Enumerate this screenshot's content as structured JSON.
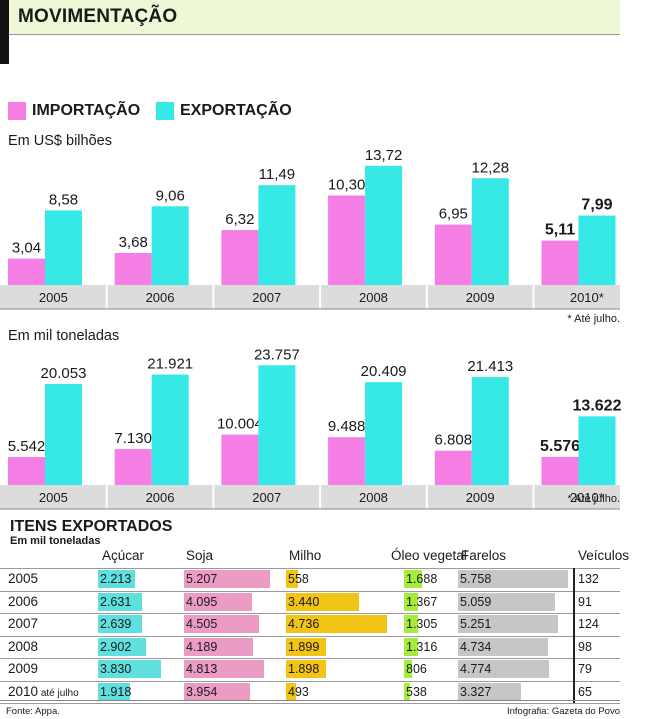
{
  "page_title": "MOVIMENTAÇÃO",
  "legend": {
    "import_label": "IMPORTAÇÃO",
    "export_label": "EXPORTAÇÃO"
  },
  "colors": {
    "import": "#f47ee3",
    "export": "#36e8e6",
    "band": "#dcdcdc",
    "acucar": "#5fe0df",
    "soja": "#eb9bc4",
    "milho": "#f2c416",
    "oleo": "#a6ec3a",
    "farelos": "#c6c6c6"
  },
  "chart_data": [
    {
      "type": "bar",
      "title": "Em US$ bilhões",
      "categories": [
        "2005",
        "2006",
        "2007",
        "2008",
        "2009",
        "2010*"
      ],
      "series": [
        {
          "name": "IMPORTAÇÃO",
          "values": [
            3.04,
            3.68,
            6.32,
            10.3,
            6.95,
            5.11
          ],
          "labels": [
            "3,04",
            "3,68",
            "6,32",
            "10,30",
            "6,95",
            "5,11"
          ]
        },
        {
          "name": "EXPORTAÇÃO",
          "values": [
            8.58,
            9.06,
            11.49,
            13.72,
            12.28,
            7.99
          ],
          "labels": [
            "8,58",
            "9,06",
            "11,49",
            "13,72",
            "12,28",
            "7,99"
          ]
        }
      ],
      "ylim": [
        0,
        14.5
      ],
      "footnote": "* Até julho."
    },
    {
      "type": "bar",
      "title": "Em mil toneladas",
      "categories": [
        "2005",
        "2006",
        "2007",
        "2008",
        "2009",
        "2010*"
      ],
      "series": [
        {
          "name": "IMPORTAÇÃO",
          "values": [
            5542,
            7130,
            10004,
            9488,
            6808,
            5576
          ],
          "labels": [
            "5.542",
            "7.130",
            "10.004",
            "9.488",
            "6.808",
            "5.576"
          ]
        },
        {
          "name": "EXPORTAÇÃO",
          "values": [
            20053,
            21921,
            23757,
            20409,
            21413,
            13622
          ],
          "labels": [
            "20.053",
            "21.921",
            "23.757",
            "20.409",
            "21.413",
            "13.622"
          ]
        }
      ],
      "ylim": [
        0,
        25000
      ],
      "footnote": "* Até julho."
    },
    {
      "type": "table",
      "title": "ITENS EXPORTADOS",
      "subtitle": "Em mil toneladas",
      "columns": [
        "Açúcar",
        "Soja",
        "Milho",
        "Óleo vegetal",
        "Farelos",
        "Veículos"
      ],
      "rows": [
        {
          "year": "2005",
          "year_note": "",
          "values": [
            2213,
            5207,
            558,
            1688,
            5758,
            132
          ],
          "labels": [
            "2.213",
            "5.207",
            "558",
            "1.688",
            "5.758",
            "132"
          ]
        },
        {
          "year": "2006",
          "year_note": "",
          "values": [
            2631,
            4095,
            3440,
            1367,
            5059,
            91
          ],
          "labels": [
            "2.631",
            "4.095",
            "3.440",
            "1.367",
            "5.059",
            "91"
          ]
        },
        {
          "year": "2007",
          "year_note": "",
          "values": [
            2639,
            4505,
            4736,
            1305,
            5251,
            124
          ],
          "labels": [
            "2.639",
            "4.505",
            "4.736",
            "1.305",
            "5.251",
            "124"
          ]
        },
        {
          "year": "2008",
          "year_note": "",
          "values": [
            2902,
            4189,
            1899,
            1316,
            4734,
            98
          ],
          "labels": [
            "2.902",
            "4.189",
            "1.899",
            "1.316",
            "4.734",
            "98"
          ]
        },
        {
          "year": "2009",
          "year_note": "",
          "values": [
            3830,
            4813,
            1898,
            806,
            4774,
            79
          ],
          "labels": [
            "3.830",
            "4.813",
            "1.898",
            "806",
            "4.774",
            "79"
          ]
        },
        {
          "year": "2010",
          "year_note": "até julho",
          "values": [
            1918,
            3954,
            493,
            538,
            3327,
            65
          ],
          "labels": [
            "1.918",
            "3.954",
            "493",
            "538",
            "3.327",
            "65"
          ]
        }
      ]
    }
  ],
  "source": "Fonte: Appa.",
  "credit": "Infografia: Gazeta do Povo"
}
